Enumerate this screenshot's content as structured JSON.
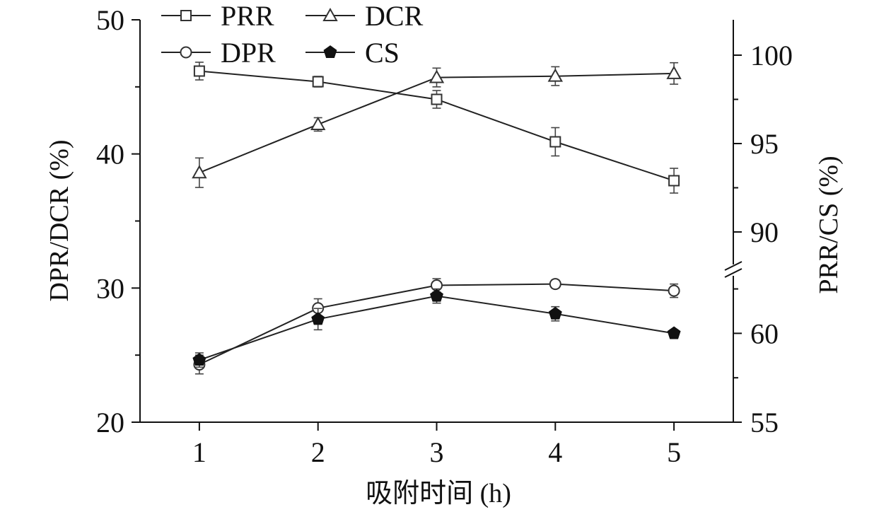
{
  "chart_data": {
    "type": "line",
    "xlabel": "吸附时间 (h)",
    "ylabel_left": "DPR/DCR (%)",
    "ylabel_right": "PRR/CS (%)",
    "x": [
      1,
      2,
      3,
      4,
      5
    ],
    "x_ticks": [
      "1",
      "2",
      "3",
      "4",
      "5"
    ],
    "xlim": [
      0.5,
      5.5
    ],
    "left_axis": {
      "ylim": [
        20,
        50
      ],
      "ticks": [
        "20",
        "30",
        "40",
        "50"
      ]
    },
    "right_axis": {
      "broken": true,
      "upper_segment": {
        "ylim": [
          88,
          102
        ],
        "ticks": [
          "90",
          "95",
          "100"
        ]
      },
      "lower_segment": {
        "ylim": [
          55,
          63
        ],
        "ticks": [
          "55",
          "60"
        ]
      }
    },
    "legend": {
      "position": "top-left"
    },
    "series": [
      {
        "name": "PRR",
        "axis": "right",
        "marker": "open-square",
        "values": [
          99.1,
          98.5,
          97.5,
          95.1,
          92.9
        ],
        "errors": [
          0.5,
          0.3,
          0.5,
          0.8,
          0.7
        ]
      },
      {
        "name": "DCR",
        "axis": "left",
        "marker": "open-triangle",
        "values": [
          38.6,
          42.2,
          45.7,
          45.8,
          46.0
        ],
        "errors": [
          1.1,
          0.5,
          0.7,
          0.7,
          0.8
        ]
      },
      {
        "name": "DPR",
        "axis": "left",
        "marker": "open-circle",
        "values": [
          24.3,
          28.5,
          30.2,
          30.3,
          29.8
        ],
        "errors": [
          0.7,
          0.7,
          0.5,
          0.3,
          0.5
        ]
      },
      {
        "name": "CS",
        "axis": "right",
        "marker": "filled-pentagon",
        "values": [
          58.5,
          60.8,
          62.1,
          61.1,
          60.0
        ],
        "errors": [
          0.4,
          0.6,
          0.4,
          0.4,
          0.2
        ]
      }
    ]
  }
}
